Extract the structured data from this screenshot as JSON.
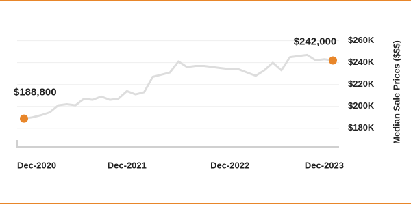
{
  "chart_data": {
    "type": "line",
    "y_axis_label": "Median Sale Prices ($$$)",
    "categories": [
      "Dec-2020",
      null,
      null,
      null,
      null,
      null,
      null,
      null,
      null,
      null,
      null,
      null,
      "Dec-2021",
      null,
      null,
      null,
      null,
      null,
      null,
      null,
      null,
      null,
      null,
      null,
      "Dec-2022",
      null,
      null,
      null,
      null,
      null,
      null,
      null,
      null,
      null,
      null,
      null,
      "Dec-2023"
    ],
    "series": [
      {
        "color": "#dddddd",
        "values": [
          188.8,
          190,
          192,
          194.5,
          201,
          202,
          201,
          207,
          206,
          209,
          206,
          207,
          214,
          211,
          213,
          227,
          229,
          231,
          241,
          236,
          237,
          237,
          236,
          235,
          234,
          234,
          231,
          228,
          233,
          240,
          233,
          245,
          246,
          247,
          242,
          243,
          242
        ],
        "value_labels": [
          "$188,800",
          null,
          null,
          null,
          null,
          null,
          null,
          null,
          null,
          null,
          null,
          null,
          null,
          null,
          null,
          null,
          null,
          null,
          null,
          null,
          null,
          null,
          null,
          null,
          null,
          null,
          null,
          null,
          null,
          null,
          null,
          null,
          null,
          null,
          null,
          null,
          "$242,000"
        ]
      }
    ],
    "marker_color": "#e8862a",
    "ylim": [
      163,
      266
    ],
    "yticks": [
      {
        "value": 180,
        "label": "$180K"
      },
      {
        "value": 200,
        "label": "$200K"
      },
      {
        "value": 220,
        "label": "$220K"
      },
      {
        "value": 240,
        "label": "$240K"
      },
      {
        "value": 260,
        "label": "$260K"
      }
    ],
    "grid": true
  }
}
